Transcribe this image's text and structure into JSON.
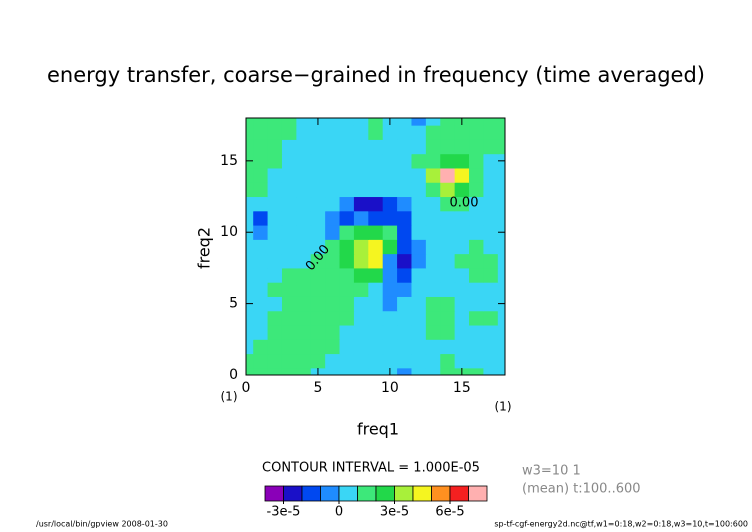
{
  "chart_data": {
    "type": "contour",
    "title": "energy transfer, coarse−grained in frequency (time averaged)",
    "x_label": "freq1",
    "y_label": "freq2",
    "x_unit": "(1)",
    "y_unit": "(1)",
    "x": [
      0,
      1,
      2,
      3,
      4,
      5,
      6,
      7,
      8,
      9,
      10,
      11,
      12,
      13,
      14,
      15,
      16,
      17,
      18
    ],
    "y": [
      0,
      1,
      2,
      3,
      4,
      5,
      6,
      7,
      8,
      9,
      10,
      11,
      12,
      13,
      14,
      15,
      16,
      17,
      18
    ],
    "xlim": [
      0,
      18
    ],
    "ylim": [
      0,
      18
    ],
    "xticks": [
      0,
      5,
      10,
      15
    ],
    "yticks": [
      0,
      5,
      10,
      15
    ],
    "z": [
      [
        1.5e-05,
        1.5e-05,
        1.5e-05,
        1.5e-05,
        1.5e-05,
        5e-06,
        5e-06,
        5e-06,
        5e-06,
        5e-06,
        5e-06,
        -5e-06,
        5e-06,
        5e-06,
        1.5e-05,
        1.5e-05,
        1.5e-05,
        5e-06,
        5e-06
      ],
      [
        1.5e-05,
        1.5e-05,
        1.5e-05,
        1.5e-05,
        1.5e-05,
        1.5e-05,
        5e-06,
        5e-06,
        5e-06,
        5e-06,
        5e-06,
        5e-06,
        5e-06,
        5e-06,
        1.5e-05,
        5e-06,
        5e-06,
        5e-06,
        5e-06
      ],
      [
        5e-06,
        1.5e-05,
        1.5e-05,
        1.5e-05,
        1.5e-05,
        1.5e-05,
        1.5e-05,
        5e-06,
        5e-06,
        5e-06,
        5e-06,
        5e-06,
        5e-06,
        5e-06,
        5e-06,
        5e-06,
        5e-06,
        5e-06,
        5e-06
      ],
      [
        5e-06,
        5e-06,
        1.5e-05,
        1.5e-05,
        1.5e-05,
        1.5e-05,
        1.5e-05,
        5e-06,
        5e-06,
        5e-06,
        5e-06,
        5e-06,
        5e-06,
        1.5e-05,
        1.5e-05,
        5e-06,
        5e-06,
        5e-06,
        5e-06
      ],
      [
        5e-06,
        5e-06,
        1.5e-05,
        1.5e-05,
        1.5e-05,
        1.5e-05,
        1.5e-05,
        1.5e-05,
        5e-06,
        5e-06,
        5e-06,
        5e-06,
        5e-06,
        1.5e-05,
        1.5e-05,
        5e-06,
        1.5e-05,
        1.5e-05,
        5e-06
      ],
      [
        5e-06,
        5e-06,
        5e-06,
        1.5e-05,
        1.5e-05,
        1.5e-05,
        1.5e-05,
        1.5e-05,
        5e-06,
        5e-06,
        -5e-06,
        5e-06,
        5e-06,
        1.5e-05,
        1.5e-05,
        5e-06,
        5e-06,
        5e-06,
        5e-06
      ],
      [
        5e-06,
        5e-06,
        1.5e-05,
        1.5e-05,
        1.5e-05,
        1.5e-05,
        1.5e-05,
        1.5e-05,
        1.5e-05,
        5e-06,
        -5e-06,
        -5e-06,
        5e-06,
        5e-06,
        5e-06,
        5e-06,
        5e-06,
        5e-06,
        5e-06
      ],
      [
        5e-06,
        5e-06,
        5e-06,
        1.5e-05,
        1.5e-05,
        1.5e-05,
        1.5e-05,
        1.5e-05,
        2.5e-05,
        2.5e-05,
        -5e-06,
        -1.5e-05,
        5e-06,
        5e-06,
        5e-06,
        5e-06,
        1.5e-05,
        1.5e-05,
        5e-06
      ],
      [
        5e-06,
        5e-06,
        5e-06,
        5e-06,
        5e-06,
        1.5e-05,
        1.5e-05,
        2.5e-05,
        3.5e-05,
        4.5e-05,
        -5e-06,
        -2.5e-05,
        -5e-06,
        5e-06,
        5e-06,
        1.5e-05,
        1.5e-05,
        1.5e-05,
        5e-06
      ],
      [
        5e-06,
        5e-06,
        5e-06,
        5e-06,
        5e-06,
        5e-06,
        1.5e-05,
        2.5e-05,
        3.5e-05,
        4.5e-05,
        2.5e-05,
        -1.5e-05,
        -5e-06,
        5e-06,
        5e-06,
        5e-06,
        1.5e-05,
        5e-06,
        5e-06
      ],
      [
        5e-06,
        -5e-06,
        5e-06,
        5e-06,
        5e-06,
        5e-06,
        -5e-06,
        1.5e-05,
        2.5e-05,
        2.5e-05,
        1.5e-05,
        -1.5e-05,
        5e-06,
        5e-06,
        5e-06,
        5e-06,
        5e-06,
        5e-06,
        5e-06
      ],
      [
        5e-06,
        -1.5e-05,
        5e-06,
        5e-06,
        5e-06,
        5e-06,
        -5e-06,
        -1.5e-05,
        -5e-06,
        -1.5e-05,
        -1.5e-05,
        -1.5e-05,
        5e-06,
        5e-06,
        5e-06,
        5e-06,
        5e-06,
        5e-06,
        5e-06
      ],
      [
        5e-06,
        5e-06,
        5e-06,
        5e-06,
        5e-06,
        5e-06,
        5e-06,
        -5e-06,
        -2.5e-05,
        -2.5e-05,
        -1.5e-05,
        -5e-06,
        5e-06,
        5e-06,
        1.5e-05,
        1.5e-05,
        5e-06,
        5e-06,
        5e-06
      ],
      [
        1.5e-05,
        1.5e-05,
        5e-06,
        5e-06,
        5e-06,
        5e-06,
        5e-06,
        5e-06,
        5e-06,
        5e-06,
        5e-06,
        5e-06,
        5e-06,
        1.5e-05,
        3.5e-05,
        2.5e-05,
        1.5e-05,
        5e-06,
        5e-06
      ],
      [
        1.5e-05,
        1.5e-05,
        5e-06,
        5e-06,
        5e-06,
        5e-06,
        5e-06,
        5e-06,
        5e-06,
        5e-06,
        5e-06,
        5e-06,
        5e-06,
        3.5e-05,
        7.5e-05,
        4.5e-05,
        1.5e-05,
        5e-06,
        5e-06
      ],
      [
        1.5e-05,
        1.5e-05,
        1.5e-05,
        5e-06,
        5e-06,
        5e-06,
        5e-06,
        5e-06,
        5e-06,
        5e-06,
        5e-06,
        5e-06,
        1.5e-05,
        1.5e-05,
        2.5e-05,
        2.5e-05,
        1.5e-05,
        5e-06,
        5e-06
      ],
      [
        1.5e-05,
        1.5e-05,
        1.5e-05,
        5e-06,
        5e-06,
        5e-06,
        5e-06,
        5e-06,
        5e-06,
        5e-06,
        5e-06,
        5e-06,
        5e-06,
        1.5e-05,
        1.5e-05,
        1.5e-05,
        1.5e-05,
        1.5e-05,
        1.5e-05
      ],
      [
        1.5e-05,
        1.5e-05,
        1.5e-05,
        1.5e-05,
        5e-06,
        5e-06,
        5e-06,
        5e-06,
        5e-06,
        1.5e-05,
        5e-06,
        5e-06,
        5e-06,
        1.5e-05,
        1.5e-05,
        1.5e-05,
        1.5e-05,
        1.5e-05,
        1.5e-05
      ],
      [
        1.5e-05,
        1.5e-05,
        1.5e-05,
        1.5e-05,
        5e-06,
        5e-06,
        5e-06,
        5e-06,
        5e-06,
        1.5e-05,
        5e-06,
        5e-06,
        -5e-06,
        5e-06,
        1.5e-05,
        1.5e-05,
        1.5e-05,
        1.5e-05,
        1.5e-05
      ]
    ],
    "levels": [
      -4e-05,
      -3e-05,
      -2e-05,
      -1e-05,
      0,
      1e-05,
      2e-05,
      3e-05,
      4e-05,
      5e-05,
      6e-05,
      7e-05,
      8e-05
    ],
    "colors": [
      "#8a00b8",
      "#1a10c8",
      "#0048f0",
      "#1f8cff",
      "#3ad6f5",
      "#3de87a",
      "#22d84a",
      "#a8f03a",
      "#f5f520",
      "#ff9020",
      "#f52020",
      "#ffb0b0"
    ],
    "colorbar_ticks": [
      {
        "value": -3e-05,
        "label": "-3e-5"
      },
      0,
      {
        "value": 3e-05,
        "label": "3e-5"
      },
      {
        "value": 6e-05,
        "label": "6e-5"
      }
    ],
    "contour_interval": "CONTOUR INTERVAL = 1.000E-05",
    "contour_labels": [
      "0.00",
      "0.00"
    ],
    "info": [
      "w3=10 1",
      "(mean) t:100..600"
    ],
    "footer_left": "/usr/local/bin/gpview  2008-01-30",
    "footer_right": "sp-tf-cgf-energy2d.nc@tf,w1=0:18,w2=0:18,w3=10,t=100:600"
  }
}
